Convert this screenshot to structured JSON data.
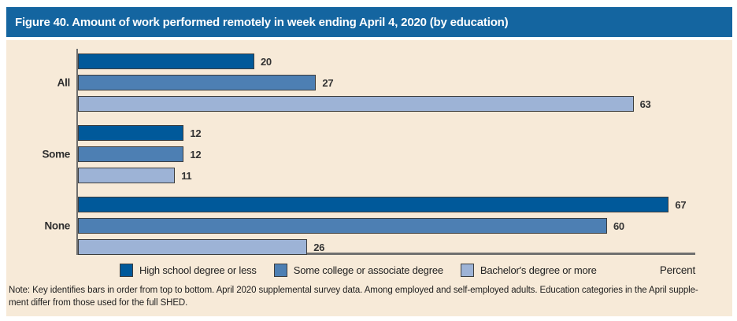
{
  "chart_data": {
    "type": "bar",
    "orientation": "horizontal",
    "title": "Figure 40. Amount of work performed remotely in week ending April 4, 2020 (by education)",
    "categories": [
      "All",
      "Some",
      "None"
    ],
    "series": [
      {
        "name": "High school degree or less",
        "color": "#00599a",
        "values": [
          20,
          12,
          67
        ]
      },
      {
        "name": "Some college or associate degree",
        "color": "#4d7fb3",
        "values": [
          27,
          12,
          60
        ]
      },
      {
        "name": "Bachelor's degree or more",
        "color": "#9db3d6",
        "values": [
          63,
          11,
          26
        ]
      }
    ],
    "xlabel": "Percent",
    "xlim": [
      0,
      70
    ],
    "value_labels": true,
    "grid": false,
    "legend_position": "bottom"
  },
  "note": {
    "lines": [
      "Note: Key identifies bars in order from top to bottom. April 2020 supplemental survey data. Among employed and self-employed adults. Education categories in the April supple-",
      "ment differ from those used for the full SHED."
    ]
  },
  "colors": {
    "header_bg": "#1465a0",
    "panel_bg": "#f7ead8",
    "bar_border": "#3d3d3d",
    "axis_line": "#6f6f6f",
    "text": "#222222"
  }
}
